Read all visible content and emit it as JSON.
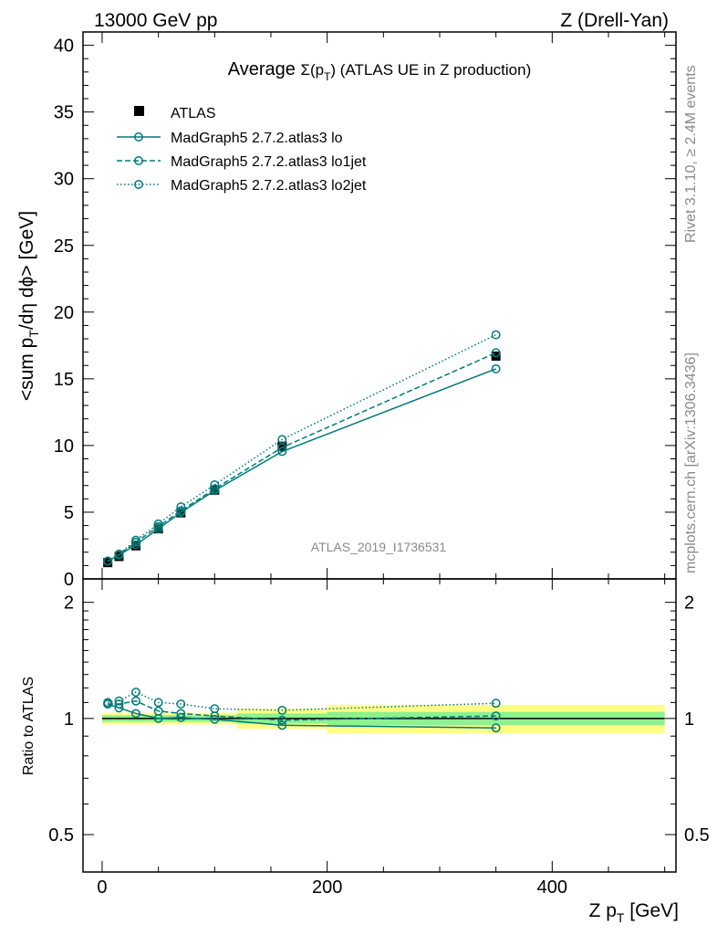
{
  "header": {
    "left": "13000 GeV pp",
    "right": "Z (Drell-Yan)"
  },
  "side_texts": {
    "rivet": "Rivet 3.1.10, ≥ 2.4M events",
    "mcplots": "mcplots.cern.ch [arXiv:1306.3436]"
  },
  "chart_data": [
    {
      "type": "line",
      "title_prefix": "Average ",
      "title_sigma": "Σ(p",
      "title_sub": "T",
      "title_close": ")",
      "title_suffix": " (ATLAS UE in Z production)",
      "ylabel_a": "<sum p",
      "ylabel_sub": "T",
      "ylabel_b": "/dη dϕ> [GeV]",
      "watermark": "ATLAS_2019_I1736531",
      "xlim": [
        -17,
        510
      ],
      "ylim": [
        0,
        41
      ],
      "yticks": [
        0,
        5,
        10,
        15,
        20,
        25,
        30,
        35,
        40
      ],
      "x": [
        5,
        15,
        30,
        50,
        70,
        100,
        160,
        350
      ],
      "series": [
        {
          "name": "ATLAS",
          "style": "data",
          "values": [
            1.22,
            1.68,
            2.48,
            3.75,
            4.95,
            6.65,
            9.95,
            16.7
          ]
        },
        {
          "name": "MadGraph5 2.7.2.atlas3 lo",
          "style": "solid",
          "values": [
            1.33,
            1.79,
            2.56,
            3.75,
            4.98,
            6.62,
            9.55,
            15.75
          ]
        },
        {
          "name": "MadGraph5 2.7.2.atlas3 lo1jet",
          "style": "dashed",
          "values": [
            1.33,
            1.83,
            2.75,
            3.92,
            5.1,
            6.75,
            9.85,
            16.95
          ]
        },
        {
          "name": "MadGraph5 2.7.2.atlas3 lo2jet",
          "style": "dotted",
          "values": [
            1.34,
            1.86,
            2.9,
            4.12,
            5.4,
            7.05,
            10.45,
            18.3
          ]
        }
      ],
      "colors": {
        "mc": "#007a7a",
        "data": "#000000"
      }
    },
    {
      "type": "line",
      "ylabel": "Ratio to ATLAS",
      "xlabel_a": "Z p",
      "xlabel_sub": "T",
      "xlabel_b": " [GeV]",
      "xlim": [
        -17,
        510
      ],
      "ylim": [
        0.4,
        2.3
      ],
      "log_y": true,
      "yticks": [
        0.5,
        1,
        2
      ],
      "ytick_labels": [
        "0.5",
        "1",
        "2"
      ],
      "xticks": [
        0,
        200,
        400
      ],
      "xtick_labels": [
        "0",
        "200",
        "400"
      ],
      "x": [
        5,
        15,
        30,
        50,
        70,
        100,
        160,
        350
      ],
      "band_edges": [
        0,
        10,
        20,
        40,
        60,
        80,
        120,
        200,
        500
      ],
      "band_inner": [
        0.02,
        0.02,
        0.02,
        0.02,
        0.02,
        0.02,
        0.03,
        0.04
      ],
      "band_outer": [
        0.035,
        0.035,
        0.035,
        0.035,
        0.035,
        0.035,
        0.06,
        0.085
      ],
      "band_colors": {
        "inner": "#8ff08f",
        "outer": "#ffff88"
      },
      "series": [
        {
          "name": "MadGraph5 2.7.2.atlas3 lo",
          "style": "solid",
          "values": [
            1.09,
            1.065,
            1.03,
            1.0,
            1.005,
            0.995,
            0.96,
            0.945
          ]
        },
        {
          "name": "MadGraph5 2.7.2.atlas3 lo1jet",
          "style": "dashed",
          "values": [
            1.09,
            1.09,
            1.11,
            1.045,
            1.03,
            1.015,
            0.99,
            1.015
          ]
        },
        {
          "name": "MadGraph5 2.7.2.atlas3 lo2jet",
          "style": "dotted",
          "values": [
            1.1,
            1.11,
            1.17,
            1.1,
            1.09,
            1.06,
            1.05,
            1.095
          ]
        }
      ]
    }
  ]
}
